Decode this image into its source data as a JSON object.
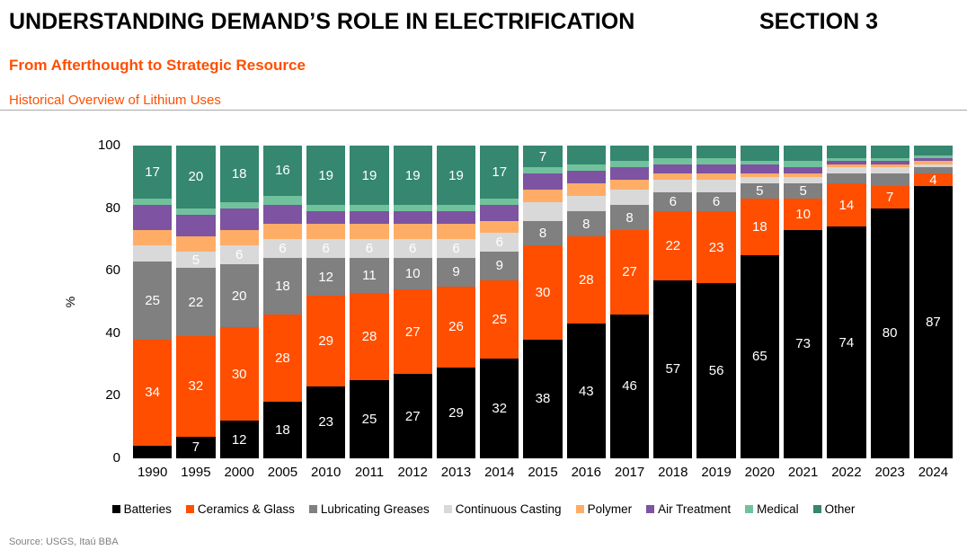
{
  "header": {
    "title": "UNDERSTANDING DEMAND’S ROLE IN ELECTRIFICATION",
    "section": "SECTION 3",
    "subtitle": "From Afterthought to Strategic Resource",
    "chart_heading": "Historical Overview of Lithium Uses"
  },
  "source": "Source: USGS, Itaú BBA",
  "colors": {
    "accent_orange": "#FF4E00",
    "title_black": "#000000",
    "source_gray": "#808080",
    "divider_gray": "#A9A9A9"
  },
  "chart_data": {
    "type": "bar",
    "stacked": true,
    "percent_stacked": true,
    "title": "Historical Overview of Lithium Uses",
    "xlabel": "",
    "ylabel": "%",
    "ylim": [
      0,
      100
    ],
    "yticks": [
      0,
      20,
      40,
      60,
      80,
      100
    ],
    "grid": false,
    "legend_position": "bottom",
    "bar_label_color": "#FFFFFF",
    "categories": [
      "1990",
      "1995",
      "2000",
      "2005",
      "2010",
      "2011",
      "2012",
      "2013",
      "2014",
      "2015",
      "2016",
      "2017",
      "2018",
      "2019",
      "2020",
      "2021",
      "2022",
      "2023",
      "2024"
    ],
    "series": [
      {
        "name": "Batteries",
        "color": "#000000",
        "values": [
          4,
          7,
          12,
          18,
          23,
          25,
          27,
          29,
          32,
          38,
          43,
          46,
          57,
          56,
          65,
          73,
          74,
          80,
          87
        ],
        "labels": [
          "",
          "7",
          "12",
          "18",
          "23",
          "25",
          "27",
          "29",
          "32",
          "38",
          "43",
          "46",
          "57",
          "56",
          "65",
          "73",
          "74",
          "80",
          "87"
        ]
      },
      {
        "name": "Ceramics & Glass",
        "color": "#FF4E00",
        "values": [
          34,
          32,
          30,
          28,
          29,
          28,
          27,
          26,
          25,
          30,
          28,
          27,
          22,
          23,
          18,
          10,
          14,
          7,
          4
        ],
        "labels": [
          "34",
          "32",
          "30",
          "28",
          "29",
          "28",
          "27",
          "26",
          "25",
          "30",
          "28",
          "27",
          "22",
          "23",
          "18",
          "10",
          "14",
          "7",
          "4"
        ]
      },
      {
        "name": "Lubricating Greases",
        "color": "#808080",
        "values": [
          25,
          22,
          20,
          18,
          12,
          11,
          10,
          9,
          9,
          8,
          8,
          8,
          6,
          6,
          5,
          5,
          3,
          4,
          2
        ],
        "labels": [
          "25",
          "22",
          "20",
          "18",
          "12",
          "11",
          "10",
          "9",
          "9",
          "8",
          "8",
          "8",
          "6",
          "6",
          "5",
          "5",
          "",
          "",
          ""
        ]
      },
      {
        "name": "Continuous Casting",
        "color": "#D9D9D9",
        "values": [
          5,
          5,
          6,
          6,
          6,
          6,
          6,
          6,
          6,
          6,
          5,
          5,
          4,
          4,
          2,
          2,
          2,
          2,
          1
        ],
        "labels": [
          "",
          "5",
          "6",
          "6",
          "6",
          "6",
          "6",
          "6",
          "6",
          "",
          "",
          "",
          "",
          "",
          "",
          "",
          "",
          "",
          ""
        ]
      },
      {
        "name": "Polymer",
        "color": "#FFAD66",
        "values": [
          5,
          5,
          5,
          5,
          5,
          5,
          5,
          5,
          4,
          4,
          4,
          3,
          2,
          2,
          1,
          1,
          1,
          1,
          1
        ],
        "labels": [
          "",
          "",
          "",
          "",
          "",
          "",
          "",
          "",
          "",
          "",
          "",
          "",
          "",
          "",
          "",
          "",
          "",
          "",
          ""
        ]
      },
      {
        "name": "Air Treatment",
        "color": "#7D53A2",
        "values": [
          8,
          7,
          7,
          6,
          4,
          4,
          4,
          4,
          5,
          5,
          4,
          4,
          3,
          3,
          3,
          2,
          1,
          1,
          1
        ],
        "labels": [
          "",
          "",
          "",
          "",
          "",
          "",
          "",
          "",
          "",
          "",
          "",
          "",
          "",
          "",
          "",
          "",
          "",
          "",
          ""
        ]
      },
      {
        "name": "Medical",
        "color": "#71C29C",
        "values": [
          2,
          2,
          2,
          3,
          2,
          2,
          2,
          2,
          2,
          2,
          2,
          2,
          2,
          2,
          1,
          2,
          1,
          1,
          1
        ],
        "labels": [
          "",
          "",
          "",
          "",
          "",
          "",
          "",
          "",
          "",
          "",
          "",
          "",
          "",
          "",
          "",
          "",
          "",
          "",
          ""
        ]
      },
      {
        "name": "Other",
        "color": "#35876F",
        "values": [
          17,
          20,
          18,
          16,
          19,
          19,
          19,
          19,
          17,
          7,
          6,
          5,
          4,
          4,
          5,
          5,
          4,
          4,
          3
        ],
        "labels": [
          "17",
          "20",
          "18",
          "16",
          "19",
          "19",
          "19",
          "19",
          "17",
          "7",
          "",
          "",
          "",
          "",
          "",
          "",
          "",
          "",
          ""
        ]
      }
    ]
  }
}
